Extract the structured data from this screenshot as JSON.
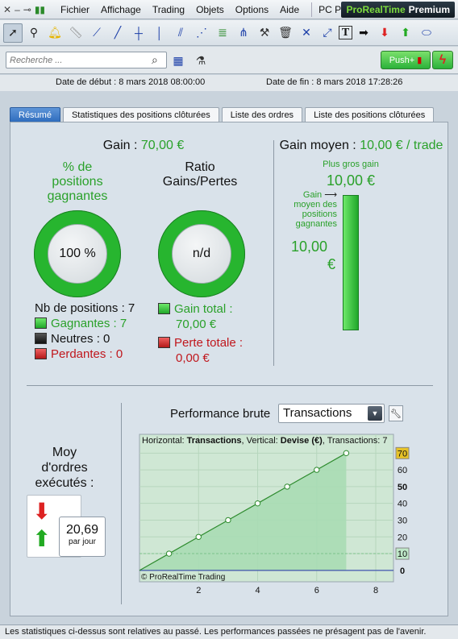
{
  "menubar": {
    "items": [
      "Fichier",
      "Affichage",
      "Trading",
      "Objets",
      "Options",
      "Aide"
    ],
    "pc_label": "PC Portable",
    "brand_name": "ProRealTime",
    "brand_suffix": "Premium"
  },
  "search": {
    "placeholder": "Recherche ..."
  },
  "push_label": "Push+",
  "dates": {
    "start": "Date de début :  8 mars 2018 08:00:00",
    "end": "Date de fin :  8 mars 2018 17:28:26"
  },
  "tabs": [
    "Résumé",
    "Statistiques des positions clôturées",
    "Liste des ordres",
    "Liste des positions clôturées"
  ],
  "summary": {
    "gain_label": "Gain : ",
    "gain_value": "70,00 €",
    "pct_title": [
      "% de",
      "positions",
      "gagnantes"
    ],
    "pct_value": "100 %",
    "ratio_title": [
      "Ratio",
      "Gains/Pertes"
    ],
    "ratio_value": "n/d",
    "nb_positions": "Nb de positions : 7",
    "gagnantes": "Gagnantes : 7",
    "neutres": "Neutres : 0",
    "perdantes": "Perdantes : 0",
    "gain_total_label": "Gain total :",
    "gain_total_value": "70,00 €",
    "perte_totale_label": "Perte totale :",
    "perte_totale_value": "0,00 €",
    "gain_moyen_label": "Gain moyen : ",
    "gain_moyen_value": "10,00 € / trade",
    "plus_gros_gain_label": "Plus gros gain",
    "plus_gros_gain_value": "10,00 €",
    "gain_moyen_pos_label": [
      "Gain",
      "moyen des",
      "positions",
      "gagnantes"
    ],
    "gain_moyen_pos_value": [
      "10,00",
      "€"
    ],
    "moy_ordres_title": [
      "Moy",
      "d'ordres",
      "exécutés :"
    ],
    "moy_ordres_value": "20,69",
    "moy_ordres_unit": "par jour"
  },
  "performance": {
    "label": "Performance brute",
    "select_value": "Transactions",
    "chart_header_prefix": "Horizontal: ",
    "chart_header_h": "Transactions",
    "chart_header_mid": ", Vertical: ",
    "chart_header_v": "Devise (€)",
    "chart_header_suffix": ", Transactions: 7",
    "watermark": "© ProRealTime Trading"
  },
  "chart_data": {
    "type": "line",
    "x": [
      0,
      1,
      2,
      3,
      4,
      5,
      6,
      7
    ],
    "y": [
      0,
      10,
      20,
      30,
      40,
      50,
      60,
      70
    ],
    "xlim": [
      0,
      8.6
    ],
    "ylim": [
      -2,
      74
    ],
    "xticks": [
      "2",
      "4",
      "6",
      "8"
    ],
    "yticks": [
      "0",
      "10",
      "20",
      "30",
      "40",
      "50",
      "60",
      "70"
    ],
    "highlighted_yticks": [
      "70",
      "10"
    ],
    "bold_yticks": [
      "50",
      "0"
    ],
    "reference_line": 10,
    "colors": {
      "area": "#a9dcb4",
      "line": "#2e8b2e",
      "zero_line": "#2233aa",
      "marker_top": "#e6c227",
      "marker_ref": "#bfe8c8"
    }
  },
  "footer": "Les statistiques ci-dessus sont relatives au passé. Les performances passées ne présagent pas de l'avenir."
}
